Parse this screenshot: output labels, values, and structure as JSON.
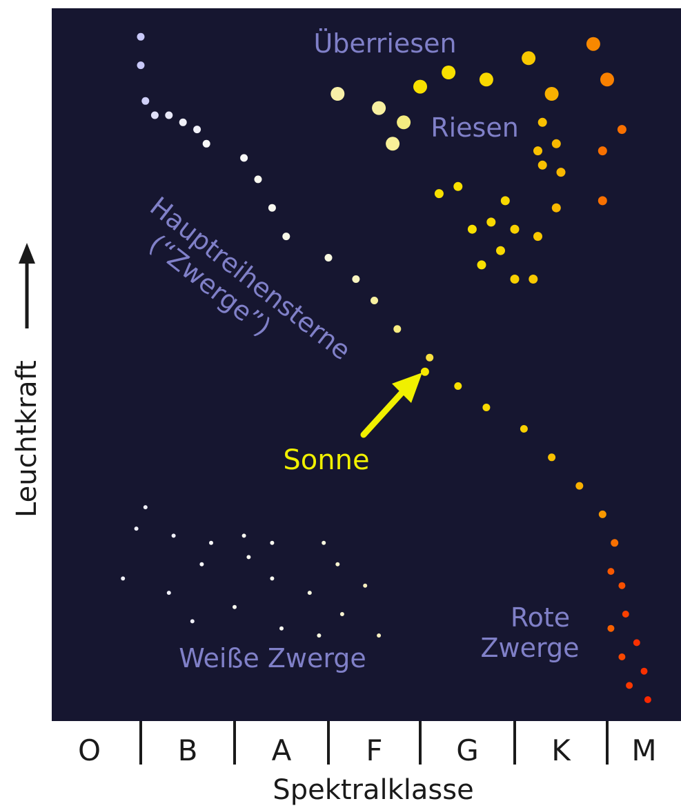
{
  "chart_data": {
    "type": "scatter",
    "title": "",
    "xlabel": "Spektralklasse",
    "ylabel": "Leuchtkraft",
    "x_categories": [
      "O",
      "B",
      "A",
      "F",
      "G",
      "K",
      "M"
    ],
    "y_direction_indicator": "arrow-up",
    "annotations": {
      "supergiants": "Überriesen",
      "giants": "Riesen",
      "main_sequence_line1": "Hauptreihensterne",
      "main_sequence_line2": "(“Zwerge”)",
      "sun": "Sonne",
      "red_dwarfs_line1": "Rote",
      "red_dwarfs_line2": "Zwerge",
      "white_dwarfs": "Weiße Zwerge"
    },
    "colors": {
      "background": "#161630",
      "label": "#8080c8",
      "sun_label": "#f0f000",
      "sun_arrow": "#f0f000",
      "axis_text": "#1a1a1a",
      "axis_line": "#1a1a1a"
    },
    "groups": [
      {
        "name": "Überriesen",
        "points": [
          {
            "class": "F",
            "pos": 0.1,
            "lum": 0.88,
            "color": "#f8f0a8"
          },
          {
            "class": "F",
            "pos": 0.55,
            "lum": 0.86,
            "color": "#f8f0a0"
          },
          {
            "class": "F",
            "pos": 0.7,
            "lum": 0.81,
            "color": "#f8f098"
          },
          {
            "class": "F",
            "pos": 0.82,
            "lum": 0.84,
            "color": "#f4ec80"
          },
          {
            "class": "G",
            "pos": 0.0,
            "lum": 0.89,
            "color": "#f8e000"
          },
          {
            "class": "G",
            "pos": 0.3,
            "lum": 0.91,
            "color": "#f8e000"
          },
          {
            "class": "G",
            "pos": 0.7,
            "lum": 0.9,
            "color": "#f8d800"
          },
          {
            "class": "K",
            "pos": 0.15,
            "lum": 0.93,
            "color": "#f8c800"
          },
          {
            "class": "K",
            "pos": 0.4,
            "lum": 0.88,
            "color": "#f8b000"
          },
          {
            "class": "K",
            "pos": 0.85,
            "lum": 0.95,
            "color": "#f88800"
          },
          {
            "class": "M",
            "pos": 0.0,
            "lum": 0.9,
            "color": "#f88000"
          }
        ]
      },
      {
        "name": "Riesen",
        "points": [
          {
            "class": "G",
            "pos": 0.2,
            "lum": 0.74,
            "color": "#f8e000"
          },
          {
            "class": "G",
            "pos": 0.4,
            "lum": 0.75,
            "color": "#f8e000"
          },
          {
            "class": "G",
            "pos": 0.55,
            "lum": 0.69,
            "color": "#f8e000"
          },
          {
            "class": "G",
            "pos": 0.75,
            "lum": 0.7,
            "color": "#f8d800"
          },
          {
            "class": "G",
            "pos": 0.9,
            "lum": 0.73,
            "color": "#f8d800"
          },
          {
            "class": "K",
            "pos": 0.0,
            "lum": 0.69,
            "color": "#f8d000"
          },
          {
            "class": "K",
            "pos": 0.25,
            "lum": 0.68,
            "color": "#f8c800"
          },
          {
            "class": "G",
            "pos": 0.65,
            "lum": 0.64,
            "color": "#f8e000"
          },
          {
            "class": "G",
            "pos": 0.85,
            "lum": 0.66,
            "color": "#f8d800"
          },
          {
            "class": "K",
            "pos": 0.0,
            "lum": 0.62,
            "color": "#f8d000"
          },
          {
            "class": "K",
            "pos": 0.2,
            "lum": 0.62,
            "color": "#f8c800"
          },
          {
            "class": "K",
            "pos": 0.45,
            "lum": 0.72,
            "color": "#f8b800"
          },
          {
            "class": "K",
            "pos": 0.3,
            "lum": 0.78,
            "color": "#f8c000"
          },
          {
            "class": "K",
            "pos": 0.25,
            "lum": 0.8,
            "color": "#f8c000"
          },
          {
            "class": "K",
            "pos": 0.45,
            "lum": 0.81,
            "color": "#f8b800"
          },
          {
            "class": "K",
            "pos": 0.95,
            "lum": 0.8,
            "color": "#f87000"
          },
          {
            "class": "M",
            "pos": 0.2,
            "lum": 0.83,
            "color": "#f87000"
          },
          {
            "class": "K",
            "pos": 0.95,
            "lum": 0.73,
            "color": "#f87000"
          },
          {
            "class": "K",
            "pos": 0.3,
            "lum": 0.84,
            "color": "#f8c000"
          },
          {
            "class": "K",
            "pos": 0.5,
            "lum": 0.77,
            "color": "#f8b800"
          }
        ]
      },
      {
        "name": "Hauptreihensterne",
        "points": [
          {
            "class": "B",
            "pos": 0.0,
            "lum": 0.96,
            "color": "#c8c8f8"
          },
          {
            "class": "B",
            "pos": 0.0,
            "lum": 0.92,
            "color": "#c8c8f8"
          },
          {
            "class": "B",
            "pos": 0.05,
            "lum": 0.87,
            "color": "#d0d0f8"
          },
          {
            "class": "B",
            "pos": 0.15,
            "lum": 0.85,
            "color": "#e0e0f8"
          },
          {
            "class": "B",
            "pos": 0.3,
            "lum": 0.85,
            "color": "#e8e8f8"
          },
          {
            "class": "B",
            "pos": 0.45,
            "lum": 0.84,
            "color": "#f0f0f8"
          },
          {
            "class": "B",
            "pos": 0.6,
            "lum": 0.83,
            "color": "#f0f0f8"
          },
          {
            "class": "B",
            "pos": 0.7,
            "lum": 0.81,
            "color": "#f8f8f8"
          },
          {
            "class": "A",
            "pos": 0.1,
            "lum": 0.79,
            "color": "#f8f8f8"
          },
          {
            "class": "A",
            "pos": 0.25,
            "lum": 0.76,
            "color": "#f8f8f0"
          },
          {
            "class": "A",
            "pos": 0.4,
            "lum": 0.72,
            "color": "#f8f8f0"
          },
          {
            "class": "A",
            "pos": 0.55,
            "lum": 0.68,
            "color": "#f8f8e8"
          },
          {
            "class": "F",
            "pos": 0.0,
            "lum": 0.65,
            "color": "#f8f8e0"
          },
          {
            "class": "F",
            "pos": 0.3,
            "lum": 0.62,
            "color": "#f8f4c0"
          },
          {
            "class": "F",
            "pos": 0.5,
            "lum": 0.59,
            "color": "#f8f0a0"
          },
          {
            "class": "F",
            "pos": 0.75,
            "lum": 0.55,
            "color": "#f8ec80"
          },
          {
            "class": "G",
            "pos": 0.1,
            "lum": 0.51,
            "color": "#f8e040"
          },
          {
            "class": "G",
            "pos": 0.4,
            "lum": 0.47,
            "color": "#f8e000"
          },
          {
            "class": "G",
            "pos": 0.7,
            "lum": 0.44,
            "color": "#f8d800"
          },
          {
            "class": "K",
            "pos": 0.1,
            "lum": 0.41,
            "color": "#f8d000"
          },
          {
            "class": "K",
            "pos": 0.4,
            "lum": 0.37,
            "color": "#f8c000"
          },
          {
            "class": "K",
            "pos": 0.7,
            "lum": 0.33,
            "color": "#f8b000"
          },
          {
            "class": "K",
            "pos": 0.95,
            "lum": 0.29,
            "color": "#f89800"
          },
          {
            "class": "M",
            "pos": 0.1,
            "lum": 0.25,
            "color": "#f87000"
          }
        ]
      },
      {
        "name": "Sonne",
        "points": [
          {
            "class": "G",
            "pos": 0.05,
            "lum": 0.49,
            "color": "#f8e800"
          }
        ]
      },
      {
        "name": "Rote Zwerge",
        "points": [
          {
            "class": "M",
            "pos": 0.05,
            "lum": 0.21,
            "color": "#f85800"
          },
          {
            "class": "M",
            "pos": 0.2,
            "lum": 0.19,
            "color": "#f85000"
          },
          {
            "class": "M",
            "pos": 0.25,
            "lum": 0.15,
            "color": "#f84000"
          },
          {
            "class": "M",
            "pos": 0.05,
            "lum": 0.13,
            "color": "#f86000"
          },
          {
            "class": "M",
            "pos": 0.4,
            "lum": 0.11,
            "color": "#f83000"
          },
          {
            "class": "M",
            "pos": 0.2,
            "lum": 0.09,
            "color": "#f84800"
          },
          {
            "class": "M",
            "pos": 0.5,
            "lum": 0.07,
            "color": "#f83000"
          },
          {
            "class": "M",
            "pos": 0.3,
            "lum": 0.05,
            "color": "#f83800"
          },
          {
            "class": "M",
            "pos": 0.55,
            "lum": 0.03,
            "color": "#f82800"
          }
        ]
      },
      {
        "name": "Weiße Zwerge",
        "points": [
          {
            "class": "B",
            "pos": 0.05,
            "lum": 0.3,
            "color": "#f0f0f8"
          },
          {
            "class": "O",
            "pos": 0.95,
            "lum": 0.27,
            "color": "#f0f0f8"
          },
          {
            "class": "B",
            "pos": 0.35,
            "lum": 0.26,
            "color": "#f0f0f8"
          },
          {
            "class": "B",
            "pos": 0.75,
            "lum": 0.25,
            "color": "#f8f8f8"
          },
          {
            "class": "A",
            "pos": 0.1,
            "lum": 0.26,
            "color": "#f8f8f0"
          },
          {
            "class": "A",
            "pos": 0.4,
            "lum": 0.25,
            "color": "#f8f8f0"
          },
          {
            "class": "A",
            "pos": 0.95,
            "lum": 0.25,
            "color": "#f8f8e0"
          },
          {
            "class": "O",
            "pos": 0.8,
            "lum": 0.2,
            "color": "#f0f0f8"
          },
          {
            "class": "B",
            "pos": 0.3,
            "lum": 0.18,
            "color": "#f0f0f8"
          },
          {
            "class": "B",
            "pos": 0.65,
            "lum": 0.22,
            "color": "#f8f8f8"
          },
          {
            "class": "A",
            "pos": 0.15,
            "lum": 0.23,
            "color": "#f8f8f0"
          },
          {
            "class": "A",
            "pos": 0.4,
            "lum": 0.2,
            "color": "#f8f8f0"
          },
          {
            "class": "A",
            "pos": 0.8,
            "lum": 0.18,
            "color": "#f8f8e0"
          },
          {
            "class": "F",
            "pos": 0.1,
            "lum": 0.22,
            "color": "#f8f4d0"
          },
          {
            "class": "F",
            "pos": 0.4,
            "lum": 0.19,
            "color": "#f8f0c0"
          },
          {
            "class": "B",
            "pos": 0.55,
            "lum": 0.14,
            "color": "#f0f0f8"
          },
          {
            "class": "A",
            "pos": 0.0,
            "lum": 0.16,
            "color": "#f8f8f0"
          },
          {
            "class": "A",
            "pos": 0.5,
            "lum": 0.13,
            "color": "#f8f8f0"
          },
          {
            "class": "A",
            "pos": 0.9,
            "lum": 0.12,
            "color": "#f8f8e0"
          },
          {
            "class": "F",
            "pos": 0.15,
            "lum": 0.15,
            "color": "#f8f4d0"
          },
          {
            "class": "F",
            "pos": 0.55,
            "lum": 0.12,
            "color": "#f8f0c0"
          }
        ]
      }
    ]
  }
}
